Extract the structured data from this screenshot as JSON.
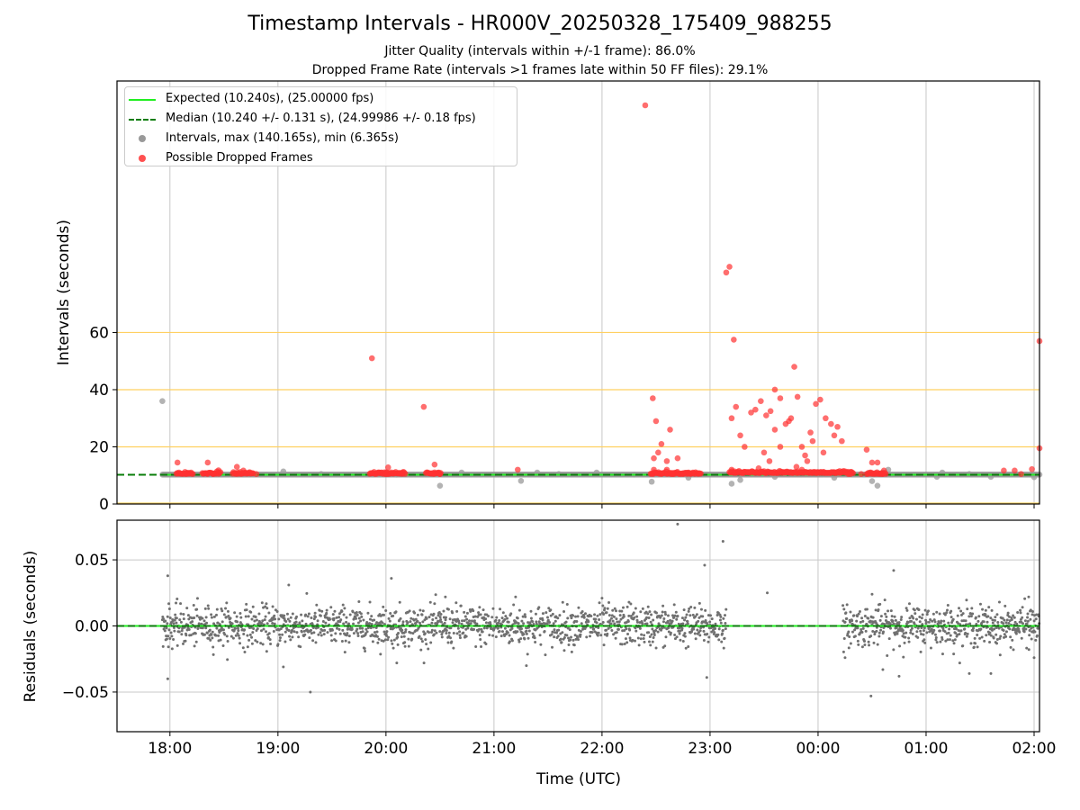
{
  "figure": {
    "title": "Timestamp Intervals - HR000V_20250328_175409_988255",
    "subtitle_1": "Jitter Quality (intervals within +/-1 frame): 86.0%",
    "subtitle_2": "Dropped Frame Rate (intervals >1 frames late within 50 FF files): 29.1%"
  },
  "colors": {
    "expected": "#22ee22",
    "median": "#0a7d0a",
    "intervals": "#999999",
    "dropped": "#ff3030",
    "guide_lines": "#ffd060",
    "residuals": "#707070"
  },
  "legend": {
    "placement": "top-left",
    "items": [
      {
        "label": "Expected (10.240s), (25.00000 fps)",
        "style": "line",
        "color": "#22ee22"
      },
      {
        "label": "Median (10.240 +/- 0.131 s), (24.99986 +/- 0.18 fps)",
        "style": "dashed",
        "color": "#0a7d0a"
      },
      {
        "label": "Intervals, max (140.165s), min (6.365s)",
        "style": "dot",
        "color": "#999999"
      },
      {
        "label": "Possible Dropped Frames",
        "style": "dot",
        "color": "#ff5050"
      }
    ]
  },
  "chart_data": [
    {
      "type": "scatter",
      "ylabel": "Intervals (seconds)",
      "xlabel": "",
      "x_unit": "hours after 17:00 UTC",
      "xlim": [
        0.51,
        9.05
      ],
      "ylim": [
        0,
        148
      ],
      "yticks": [
        0,
        20,
        40,
        60
      ],
      "grid": true,
      "legend_placement": "top-left",
      "guide_lines_y": [
        20,
        40,
        60
      ],
      "expected_interval": 10.24,
      "median_interval": 10.24,
      "series": [
        {
          "name": "Intervals, max (140.165s), min (6.365s)",
          "points": [
            [
              0.93,
              36
            ],
            [
              1.15,
              10.6
            ],
            [
              1.6,
              10.7
            ],
            [
              2.05,
              11.4
            ],
            [
              2.4,
              10.5
            ],
            [
              3.1,
              10.3
            ],
            [
              3.5,
              6.4
            ],
            [
              3.7,
              11
            ],
            [
              4.25,
              8.1
            ],
            [
              4.4,
              11
            ],
            [
              4.6,
              10.5
            ],
            [
              4.95,
              11
            ],
            [
              5.3,
              10.3
            ],
            [
              5.46,
              7.8
            ],
            [
              5.8,
              9.2
            ],
            [
              6.2,
              7.1
            ],
            [
              6.28,
              8.4
            ],
            [
              6.6,
              9.5
            ],
            [
              7.15,
              9.2
            ],
            [
              7.5,
              8
            ],
            [
              7.55,
              6.4
            ],
            [
              7.6,
              11
            ],
            [
              7.65,
              12
            ],
            [
              8.1,
              9.5
            ],
            [
              8.15,
              11
            ],
            [
              8.4,
              10.5
            ],
            [
              8.6,
              9.5
            ],
            [
              9.0,
              9.4
            ]
          ]
        },
        {
          "name": "Possible Dropped Frames",
          "points": [
            [
              1.07,
              14.5
            ],
            [
              1.15,
              10.5
            ],
            [
              1.35,
              14.5
            ],
            [
              1.4,
              10.5
            ],
            [
              1.45,
              11.8
            ],
            [
              1.62,
              13
            ],
            [
              1.68,
              11.7
            ],
            [
              1.8,
              10.5
            ],
            [
              2.87,
              51
            ],
            [
              3.0,
              10.5
            ],
            [
              3.02,
              12.8
            ],
            [
              3.15,
              11
            ],
            [
              3.35,
              34
            ],
            [
              3.45,
              13.8
            ],
            [
              3.5,
              10.5
            ],
            [
              4.22,
              12
            ],
            [
              5.4,
              139.5
            ],
            [
              5.47,
              37
            ],
            [
              5.5,
              29
            ],
            [
              5.55,
              21
            ],
            [
              5.52,
              18
            ],
            [
              5.48,
              16
            ],
            [
              5.6,
              15
            ],
            [
              5.63,
              26
            ],
            [
              5.6,
              12
            ],
            [
              5.7,
              16
            ],
            [
              5.8,
              11
            ],
            [
              5.48,
              12
            ],
            [
              5.55,
              10.5
            ],
            [
              5.65,
              10.5
            ],
            [
              5.75,
              10.5
            ],
            [
              6.15,
              81
            ],
            [
              6.18,
              83
            ],
            [
              6.22,
              57.5
            ],
            [
              6.24,
              34
            ],
            [
              6.2,
              30
            ],
            [
              6.28,
              24
            ],
            [
              6.32,
              20
            ],
            [
              6.38,
              32
            ],
            [
              6.42,
              33
            ],
            [
              6.47,
              36
            ],
            [
              6.52,
              31
            ],
            [
              6.56,
              32.5
            ],
            [
              6.6,
              40
            ],
            [
              6.65,
              37
            ],
            [
              6.7,
              28
            ],
            [
              6.73,
              29
            ],
            [
              6.78,
              48
            ],
            [
              6.81,
              37.5
            ],
            [
              6.85,
              20
            ],
            [
              6.88,
              17
            ],
            [
              6.93,
              25
            ],
            [
              6.98,
              35
            ],
            [
              7.02,
              36.5
            ],
            [
              7.07,
              30
            ],
            [
              7.12,
              28
            ],
            [
              7.18,
              27
            ],
            [
              7.22,
              22
            ],
            [
              7.28,
              10.5
            ],
            [
              6.5,
              18
            ],
            [
              6.55,
              15
            ],
            [
              6.6,
              26
            ],
            [
              6.65,
              20
            ],
            [
              6.75,
              30
            ],
            [
              6.8,
              13
            ],
            [
              6.9,
              15
            ],
            [
              6.95,
              22
            ],
            [
              7.05,
              18
            ],
            [
              7.15,
              24
            ],
            [
              7.45,
              19
            ],
            [
              7.5,
              14.5
            ],
            [
              7.55,
              14.5
            ],
            [
              6.2,
              12
            ],
            [
              6.3,
              11
            ],
            [
              6.45,
              12.5
            ],
            [
              6.7,
              11
            ],
            [
              6.85,
              12
            ],
            [
              7.0,
              11
            ],
            [
              7.2,
              11.5
            ],
            [
              7.3,
              10.5
            ],
            [
              7.4,
              10.5
            ],
            [
              7.6,
              10.5
            ],
            [
              8.72,
              11.7
            ],
            [
              8.82,
              11.7
            ],
            [
              8.88,
              10.5
            ],
            [
              8.98,
              12.2
            ],
            [
              9.05,
              57
            ],
            [
              9.05,
              19.5
            ]
          ]
        }
      ],
      "dense_bands": [
        {
          "series": "Possible Dropped Frames",
          "x_range": [
            1.06,
            1.22
          ],
          "y": 10.5
        },
        {
          "series": "Possible Dropped Frames",
          "x_range": [
            1.3,
            1.47
          ],
          "y": 10.5
        },
        {
          "series": "Possible Dropped Frames",
          "x_range": [
            1.58,
            1.78
          ],
          "y": 10.5
        },
        {
          "series": "Possible Dropped Frames",
          "x_range": [
            2.85,
            3.18
          ],
          "y": 10.5
        },
        {
          "series": "Possible Dropped Frames",
          "x_range": [
            3.37,
            3.51
          ],
          "y": 10.5
        },
        {
          "series": "Possible Dropped Frames",
          "x_range": [
            5.45,
            5.92
          ],
          "y": 10.5
        },
        {
          "series": "Possible Dropped Frames",
          "x_range": [
            6.18,
            7.33
          ],
          "y": 10.8
        },
        {
          "series": "Possible Dropped Frames",
          "x_range": [
            7.45,
            7.63
          ],
          "y": 10.5
        }
      ]
    },
    {
      "type": "scatter",
      "ylabel": "Residuals (seconds)",
      "xlabel": "Time (UTC)",
      "x_unit": "hours after 17:00 UTC",
      "xlim": [
        0.51,
        9.05
      ],
      "ylim": [
        -0.08,
        0.08
      ],
      "yticks": [
        -0.05,
        0.0,
        0.05
      ],
      "ytick_labels": [
        "−0.05",
        "0.00",
        "0.05"
      ],
      "xticks": [
        1,
        2,
        3,
        4,
        5,
        6,
        7,
        8,
        9
      ],
      "xtick_labels": [
        "18:00",
        "19:00",
        "20:00",
        "21:00",
        "22:00",
        "23:00",
        "00:00",
        "01:00",
        "02:00"
      ],
      "grid": true,
      "zero_line": 0,
      "series": [
        {
          "name": "Residuals",
          "scatter_band": {
            "x_range": [
              0.93,
              6.15
            ],
            "sigma": 0.0075
          },
          "scatter_band_2": {
            "x_range": [
              7.23,
              9.05
            ],
            "sigma": 0.0075
          },
          "outliers": [
            [
              0.98,
              0.038
            ],
            [
              0.98,
              -0.04
            ],
            [
              2.1,
              0.031
            ],
            [
              2.05,
              -0.031
            ],
            [
              2.3,
              -0.05
            ],
            [
              3.05,
              0.036
            ],
            [
              3.1,
              -0.028
            ],
            [
              3.55,
              0.022
            ],
            [
              4.2,
              0.022
            ],
            [
              4.3,
              -0.03
            ],
            [
              5.0,
              0.021
            ],
            [
              5.25,
              0.018
            ],
            [
              5.7,
              0.077
            ],
            [
              6.12,
              0.064
            ],
            [
              5.95,
              0.046
            ],
            [
              5.97,
              -0.039
            ],
            [
              6.53,
              0.025
            ],
            [
              7.25,
              -0.024
            ],
            [
              7.5,
              0.024
            ],
            [
              7.49,
              -0.053
            ],
            [
              7.6,
              -0.033
            ],
            [
              7.7,
              0.042
            ],
            [
              7.75,
              -0.038
            ],
            [
              8.4,
              -0.036
            ],
            [
              8.6,
              -0.036
            ],
            [
              8.95,
              0.022
            ],
            [
              9.0,
              -0.024
            ]
          ]
        }
      ]
    }
  ]
}
